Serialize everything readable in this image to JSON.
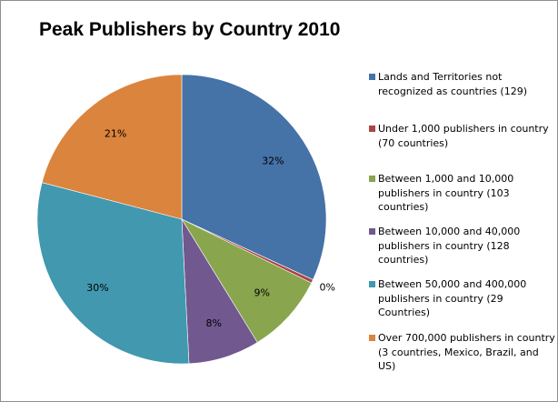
{
  "chart_data": {
    "type": "pie",
    "title": "Peak Publishers by Country 2010",
    "start_angle_deg": 0,
    "slices": [
      {
        "label": "Lands and Territories not recognized as countries (129)",
        "value": 32,
        "display": "32%",
        "color": "#4572A7"
      },
      {
        "label": "Under 1,000 publishers in country (70 countries)",
        "value": 0.4,
        "display": "0%",
        "color": "#AA4643"
      },
      {
        "label": "Between 1,000 and 10,000 publishers in country (103 countries)",
        "value": 9,
        "display": "9%",
        "color": "#89A54E"
      },
      {
        "label": "Between 10,000 and 40,000 publishers in country (128 countries)",
        "value": 8,
        "display": "8%",
        "color": "#71588F"
      },
      {
        "label": "Between 50,000 and 400,000 publishers in country (29 Countries)",
        "value": 30,
        "display": "30%",
        "color": "#4198AF"
      },
      {
        "label": "Over 700,000 publishers in country (3 countries, Mexico, Brazil, and US)",
        "value": 21,
        "display": "21%",
        "color": "#DB843D"
      }
    ],
    "legend_position": "right"
  }
}
